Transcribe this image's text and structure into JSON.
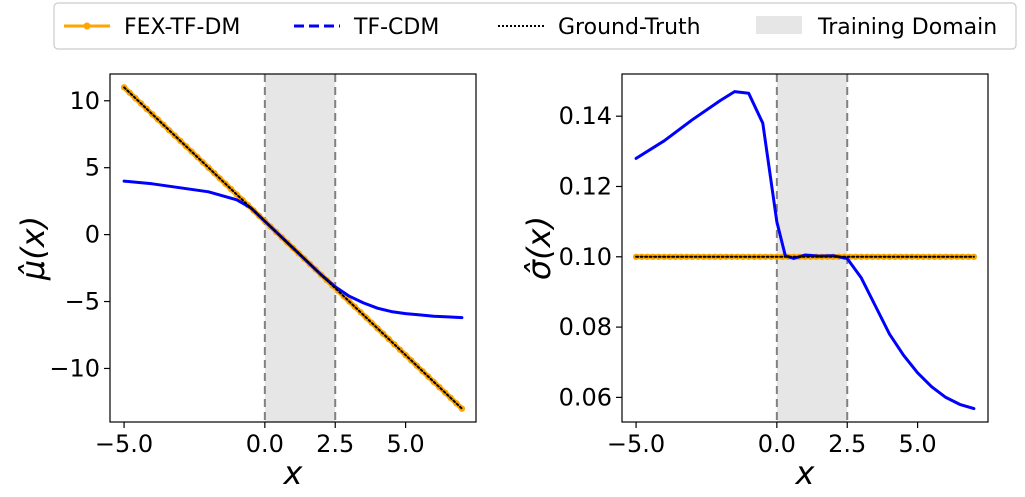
{
  "legend": {
    "items": [
      {
        "label": "FEX-TF-DM",
        "color": "#FFA500",
        "style": "solid-marker"
      },
      {
        "label": "TF-CDM",
        "color": "#0000FF",
        "style": "dashed"
      },
      {
        "label": "Ground-Truth",
        "color": "#000000",
        "style": "dotted"
      },
      {
        "label": "Training Domain",
        "color": "#E6E6E6",
        "style": "patch"
      }
    ]
  },
  "chart_data": [
    {
      "type": "line",
      "xlabel": "x",
      "ylabel": "μ̂(x)",
      "xlim": [
        -5.5,
        7.5
      ],
      "ylim": [
        -14,
        12
      ],
      "xticks": [
        -5.0,
        0.0,
        2.5,
        5.0
      ],
      "xtick_labels": [
        "−5.0",
        "0.0",
        "2.5",
        "5.0"
      ],
      "yticks": [
        10,
        5,
        0,
        -5,
        -10
      ],
      "ytick_labels": [
        "10",
        "5",
        "0",
        "−5",
        "−10"
      ],
      "training_domain": [
        0,
        2.5
      ],
      "series": [
        {
          "name": "FEX-TF-DM",
          "x": [
            -5,
            7
          ],
          "y": [
            11,
            -13
          ]
        },
        {
          "name": "Ground-Truth",
          "x": [
            -5,
            7
          ],
          "y": [
            11,
            -13
          ]
        },
        {
          "name": "TF-CDM",
          "x": [
            -5,
            -4,
            -3,
            -2,
            -1,
            -0.5,
            0,
            0.5,
            1,
            1.5,
            2,
            2.5,
            3,
            3.5,
            4,
            4.5,
            5,
            5.5,
            6,
            6.5,
            7
          ],
          "y": [
            4.0,
            3.8,
            3.5,
            3.2,
            2.6,
            2.0,
            1.0,
            0.0,
            -1.0,
            -2.0,
            -3.0,
            -3.9,
            -4.6,
            -5.1,
            -5.5,
            -5.75,
            -5.9,
            -6.0,
            -6.1,
            -6.15,
            -6.2
          ]
        }
      ]
    },
    {
      "type": "line",
      "xlabel": "x",
      "ylabel": "σ̂(x)",
      "xlim": [
        -5.5,
        7.5
      ],
      "ylim": [
        0.053,
        0.152
      ],
      "xticks": [
        -5.0,
        0.0,
        2.5,
        5.0
      ],
      "xtick_labels": [
        "−5.0",
        "0.0",
        "2.5",
        "5.0"
      ],
      "yticks": [
        0.14,
        0.12,
        0.1,
        0.08,
        0.06
      ],
      "ytick_labels": [
        "0.14",
        "0.12",
        "0.10",
        "0.08",
        "0.06"
      ],
      "training_domain": [
        0,
        2.5
      ],
      "series": [
        {
          "name": "FEX-TF-DM",
          "x": [
            -5,
            7
          ],
          "y": [
            0.1,
            0.1
          ]
        },
        {
          "name": "Ground-Truth",
          "x": [
            -5,
            7
          ],
          "y": [
            0.1,
            0.1
          ]
        },
        {
          "name": "TF-CDM",
          "x": [
            -5,
            -4,
            -3,
            -2,
            -1.5,
            -1,
            -0.5,
            0,
            0.3,
            0.6,
            1,
            1.5,
            2,
            2.5,
            3,
            3.5,
            4,
            4.5,
            5,
            5.5,
            6,
            6.5,
            7
          ],
          "y": [
            0.128,
            0.133,
            0.139,
            0.1445,
            0.147,
            0.1465,
            0.138,
            0.11,
            0.1003,
            0.0995,
            0.1005,
            0.1002,
            0.1003,
            0.0995,
            0.094,
            0.086,
            0.078,
            0.072,
            0.067,
            0.063,
            0.06,
            0.058,
            0.0568
          ]
        }
      ]
    }
  ]
}
